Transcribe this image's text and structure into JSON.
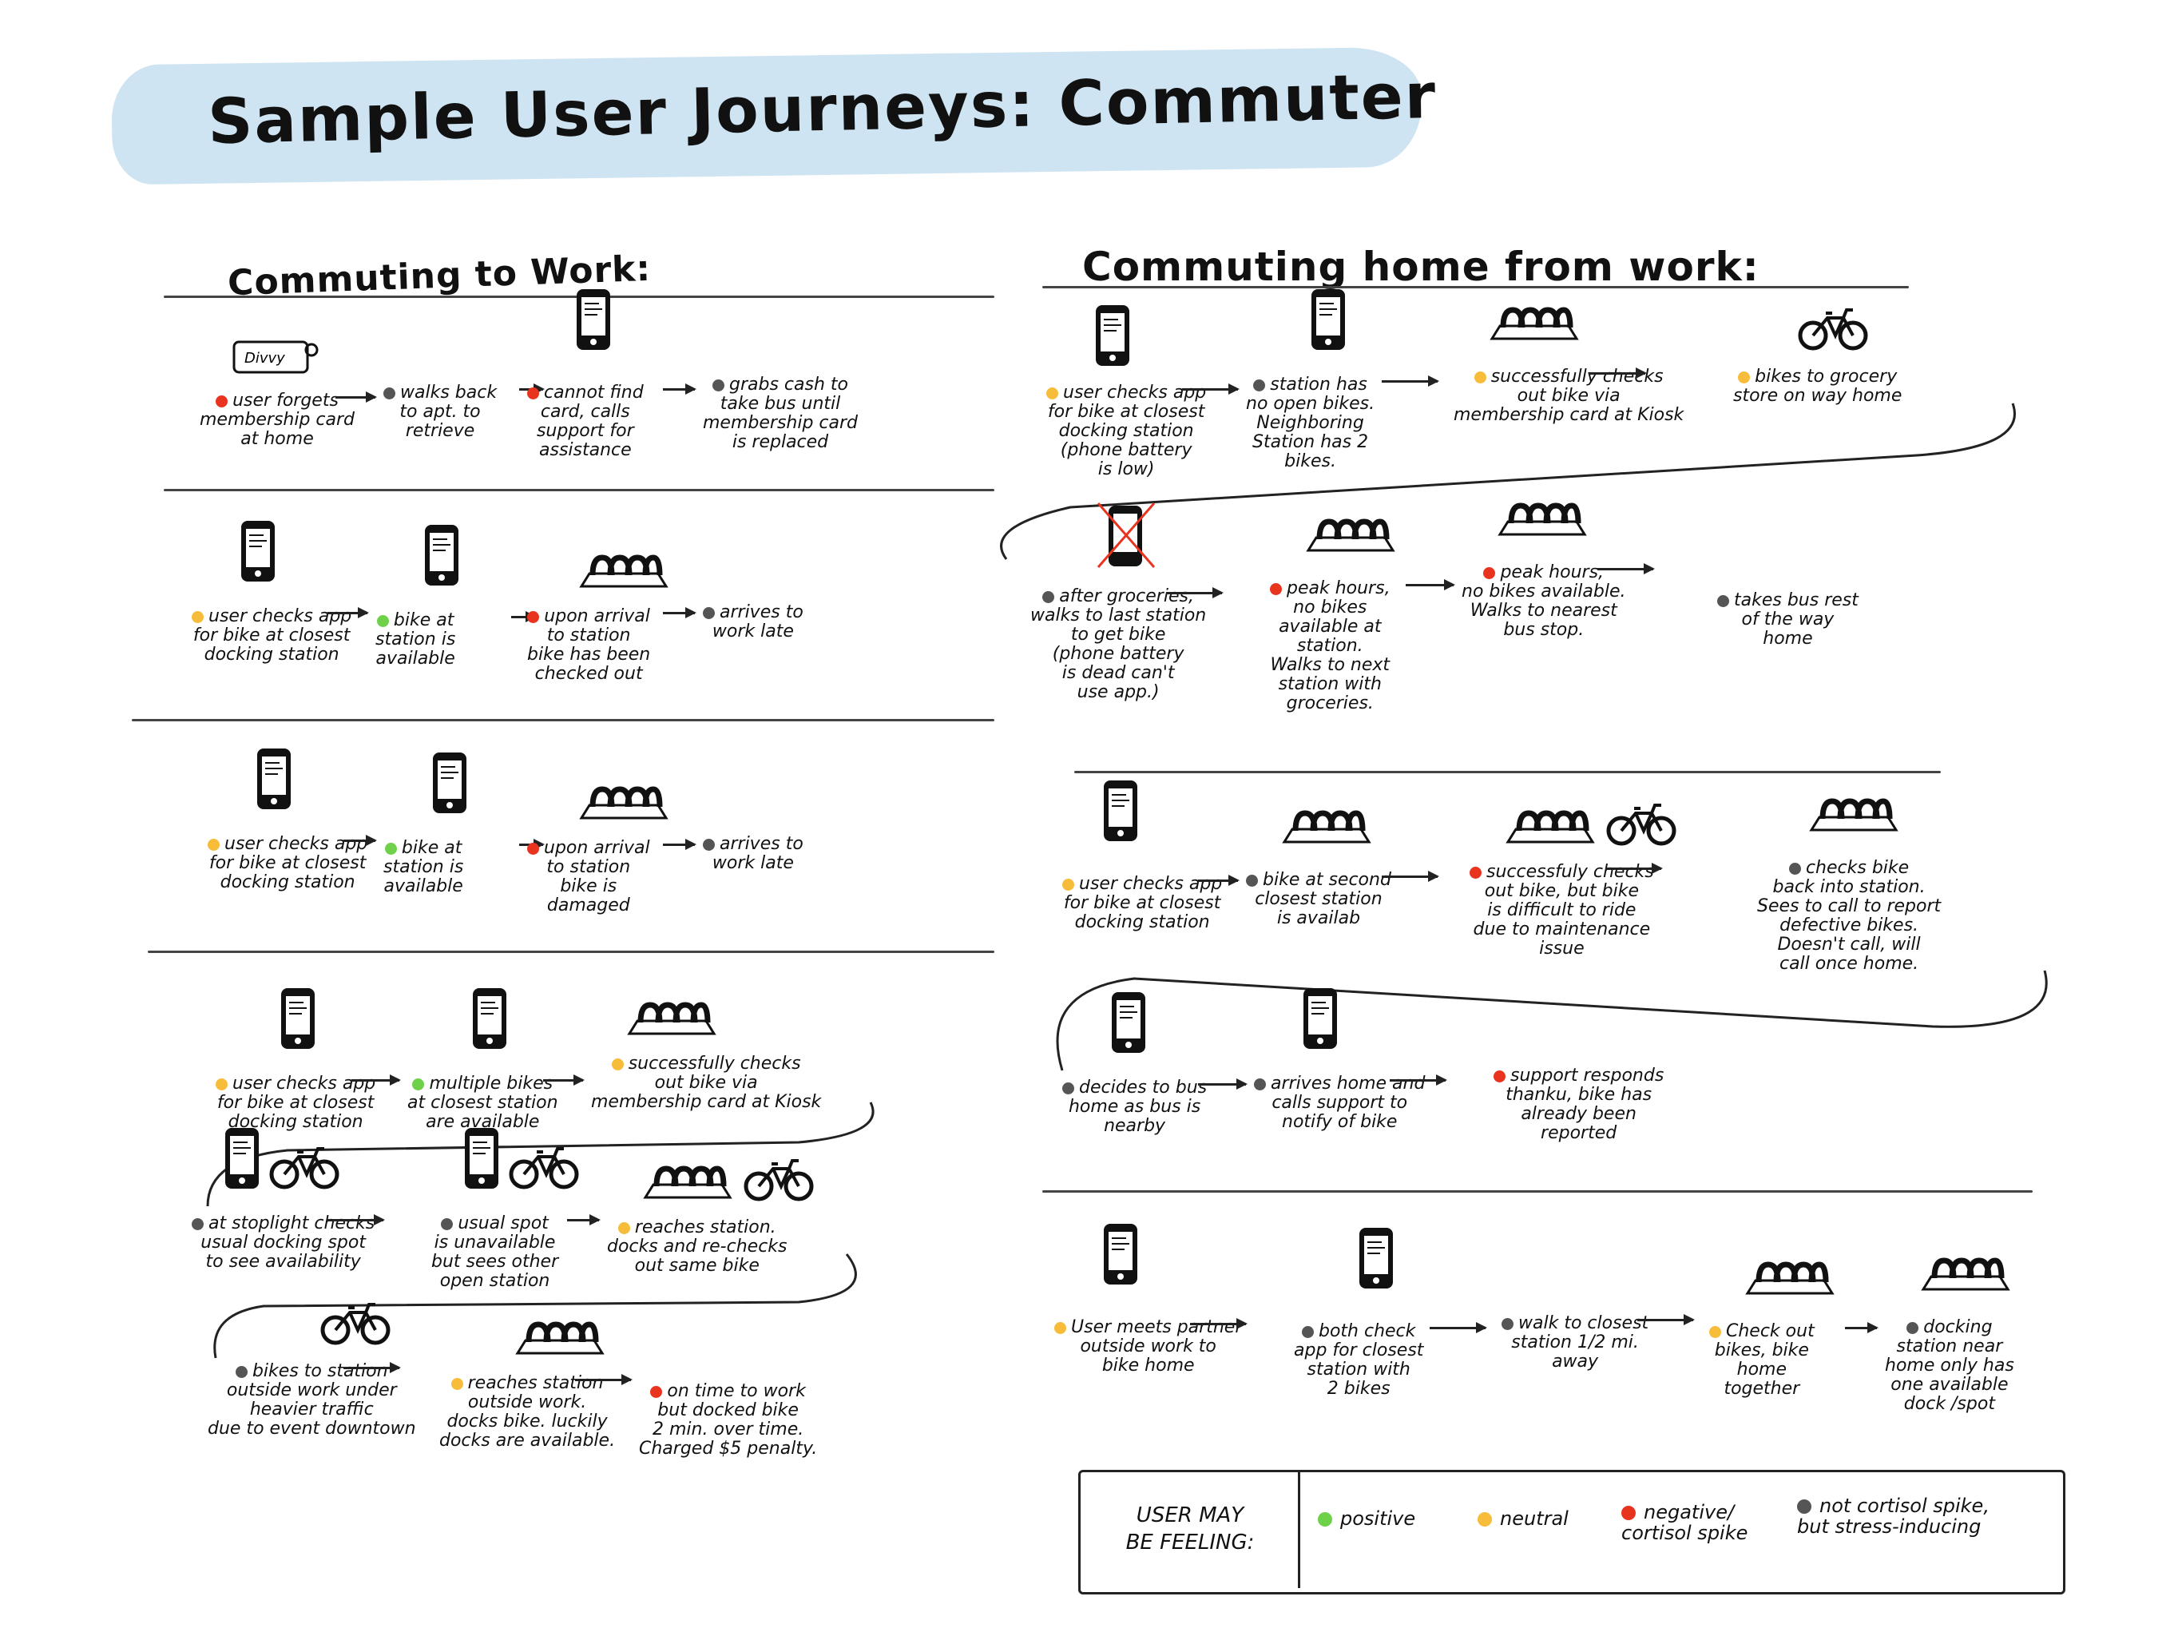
{
  "title": "Sample User Journeys: Commuter",
  "colors": {
    "positive": "#6fd04a",
    "neutral": "#f7bd3a",
    "negative": "#e8341f",
    "stress": "#555555"
  },
  "sections": {
    "to_work": "Commuting to Work:",
    "home": "Commuting home from work:"
  },
  "journeys": {
    "w1": [
      {
        "text": "user forgets\nmembership card\nat home",
        "mood": "negative",
        "icon": "divvy-card-icon",
        "icon_label": "Divvy"
      },
      {
        "text": "walks back\nto apt. to\nretrieve",
        "mood": "stress",
        "icon": ""
      },
      {
        "text": "cannot find\ncard, calls\nsupport for\nassistance",
        "mood": "negative",
        "icon": "phone-icon"
      },
      {
        "text": "grabs cash to\ntake bus until\nmembership card\nis replaced",
        "mood": "stress",
        "icon": ""
      }
    ],
    "w2": [
      {
        "text": "user checks app\nfor bike at closest\ndocking station",
        "mood": "neutral",
        "icon": "phone-icon"
      },
      {
        "text": "bike at\nstation is\navailable",
        "mood": "positive",
        "icon": "phone-icon"
      },
      {
        "text": "upon arrival\nto station\nbike has been\nchecked out",
        "mood": "negative",
        "icon": "dock-icon"
      },
      {
        "text": "arrives to\nwork late",
        "mood": "stress",
        "icon": ""
      }
    ],
    "w3": [
      {
        "text": "user checks app\nfor bike at closest\ndocking station",
        "mood": "neutral",
        "icon": "phone-icon"
      },
      {
        "text": "bike at\nstation is\navailable",
        "mood": "positive",
        "icon": "phone-icon"
      },
      {
        "text": "upon arrival\nto station\nbike is\ndamaged",
        "mood": "negative",
        "icon": "dock-icon"
      },
      {
        "text": "arrives to\nwork late",
        "mood": "stress",
        "icon": ""
      }
    ],
    "w4": [
      {
        "text": "user checks app\nfor bike at closest\ndocking station",
        "mood": "neutral",
        "icon": "phone-icon"
      },
      {
        "text": "multiple bikes\nat closest station\nare available",
        "mood": "positive",
        "icon": "phone-icon"
      },
      {
        "text": "successfully checks\nout bike via\nmembership card at Kiosk",
        "mood": "neutral",
        "icon": "dock-icon"
      },
      {
        "text": "at stoplight checks\nusual docking spot\nto see availability",
        "mood": "stress",
        "icon": "phone-bike-icon"
      },
      {
        "text": "usual spot\nis unavailable\nbut sees other\nopen station",
        "mood": "stress",
        "icon": "phone-bike-icon"
      },
      {
        "text": "reaches station.\ndocks and re-checks\nout same bike",
        "mood": "neutral",
        "icon": "dock-bike-icon"
      },
      {
        "text": "bikes to station\noutside work under\nheavier traffic\ndue to event downtown",
        "mood": "stress",
        "icon": "bike-icon"
      },
      {
        "text": "reaches station\noutside work.\ndocks bike. luckily\ndocks are available.",
        "mood": "neutral",
        "icon": "dock-icon"
      },
      {
        "text": "on time to work\nbut docked bike\n2 min. over time.\nCharged $5 penalty.",
        "mood": "negative",
        "icon": ""
      }
    ],
    "h1": [
      {
        "text": "user checks app\nfor bike at closest\ndocking station\n(phone battery\nis low)",
        "mood": "neutral",
        "icon": "phone-icon"
      },
      {
        "text": "station has\nno open bikes.\nNeighboring\nStation has 2\nbikes.",
        "mood": "stress",
        "icon": "phone-icon"
      },
      {
        "text": "successfully checks\nout bike via\nmembership card at Kiosk",
        "mood": "neutral",
        "icon": "dock-icon"
      },
      {
        "text": "bikes to grocery\nstore on way home",
        "mood": "neutral",
        "icon": "bike-icon"
      },
      {
        "text": "after groceries,\nwalks to last station\nto get bike\n(phone battery\nis dead can't\nuse app.)",
        "mood": "stress",
        "icon": "dead-phone-icon"
      },
      {
        "text": "peak hours,\nno bikes\navailable at\nstation.\nWalks to next\nstation with\ngroceries.",
        "mood": "negative",
        "icon": "dock-icon"
      },
      {
        "text": "peak hours,\nno bikes available.\nWalks to nearest\nbus stop.",
        "mood": "negative",
        "icon": "dock-icon"
      },
      {
        "text": "takes bus rest\nof the way\nhome",
        "mood": "stress",
        "icon": ""
      }
    ],
    "h2": [
      {
        "text": "user checks app\nfor bike at closest\ndocking station",
        "mood": "neutral",
        "icon": "phone-icon"
      },
      {
        "text": "bike at second\nclosest station\nis availab",
        "mood": "stress",
        "icon": "dock-icon"
      },
      {
        "text": "successfuly checks\nout bike, but bike\nis difficult to ride\ndue to maintenance\nissue",
        "mood": "negative",
        "icon": "dock-bike-icon"
      },
      {
        "text": "checks bike\nback into station.\nSees to call to report\ndefective bikes.\nDoesn't call, will\ncall once home.",
        "mood": "stress",
        "icon": "dock-icon"
      },
      {
        "text": "decides to bus\nhome as bus is\nnearby",
        "mood": "stress",
        "icon": "phone-icon"
      },
      {
        "text": "arrives home and\ncalls support to\nnotify of bike",
        "mood": "stress",
        "icon": "phone-icon"
      },
      {
        "text": "support responds\nthanku, bike has\nalready been\nreported",
        "mood": "negative",
        "icon": ""
      }
    ],
    "h3": [
      {
        "text": "User meets partner\noutside work to\nbike home",
        "mood": "neutral",
        "icon": "phone-icon"
      },
      {
        "text": "both check\napp for closest\nstation with\n2 bikes",
        "mood": "stress",
        "icon": "phone-icon"
      },
      {
        "text": "walk to closest\nstation 1/2 mi.\naway",
        "mood": "stress",
        "icon": ""
      },
      {
        "text": "Check out\nbikes, bike\nhome\ntogether",
        "mood": "neutral",
        "icon": "dock-icon"
      },
      {
        "text": "docking\nstation near\nhome only has\none available\ndock /spot",
        "mood": "stress",
        "icon": "dock-icon"
      }
    ]
  },
  "legend": {
    "title": "USER MAY\nBE FEELING:",
    "items": [
      {
        "label": "positive",
        "mood": "positive"
      },
      {
        "label": "neutral",
        "mood": "neutral"
      },
      {
        "label": "negative/\ncortisol spike",
        "mood": "negative"
      },
      {
        "label": "not cortisol spike,\nbut stress-inducing",
        "mood": "stress"
      }
    ]
  }
}
